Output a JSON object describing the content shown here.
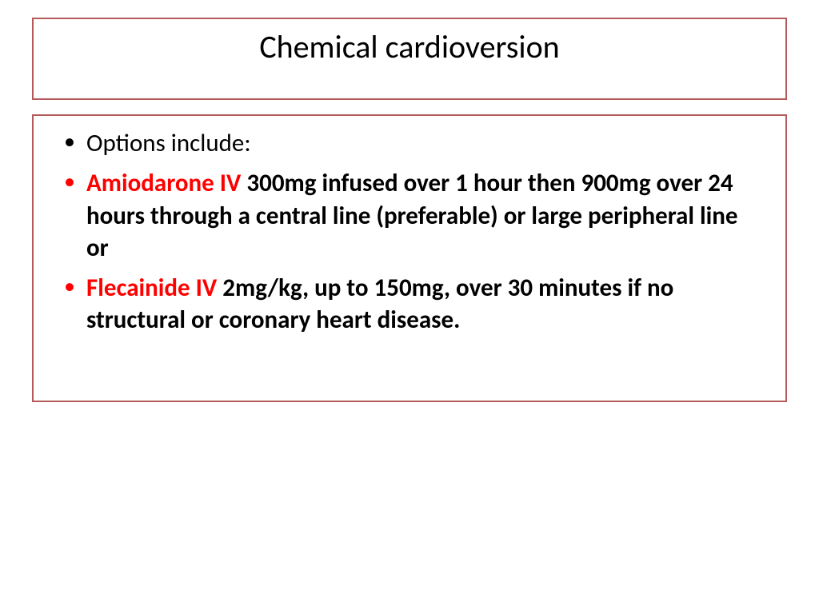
{
  "slide": {
    "title": "Chemical cardioversion",
    "border_color": "#b55a5a",
    "background_color": "#ffffff",
    "title_fontsize": 40,
    "body_fontsize": 31,
    "bullets": [
      {
        "bullet_color": "black",
        "segments": [
          {
            "text": "Options include:",
            "style": "normal"
          }
        ]
      },
      {
        "bullet_color": "red",
        "segments": [
          {
            "text": "Amiodarone IV ",
            "style": "red-bold"
          },
          {
            "text": "300mg infused over 1 hour then 900mg over 24 hours through a central line (preferable) or large peripheral line or",
            "style": "bold"
          }
        ]
      },
      {
        "bullet_color": "red",
        "segments": [
          {
            "text": "Flecainide IV ",
            "style": "red-bold"
          },
          {
            "text": "2mg/kg, up to 150mg, over 30 minutes if no structural or coronary heart disease.",
            "style": "bold"
          }
        ]
      }
    ],
    "colors": {
      "text_black": "#000000",
      "text_red": "#ff0000",
      "bullet_black": "#000000",
      "bullet_red": "#ff0000"
    }
  }
}
